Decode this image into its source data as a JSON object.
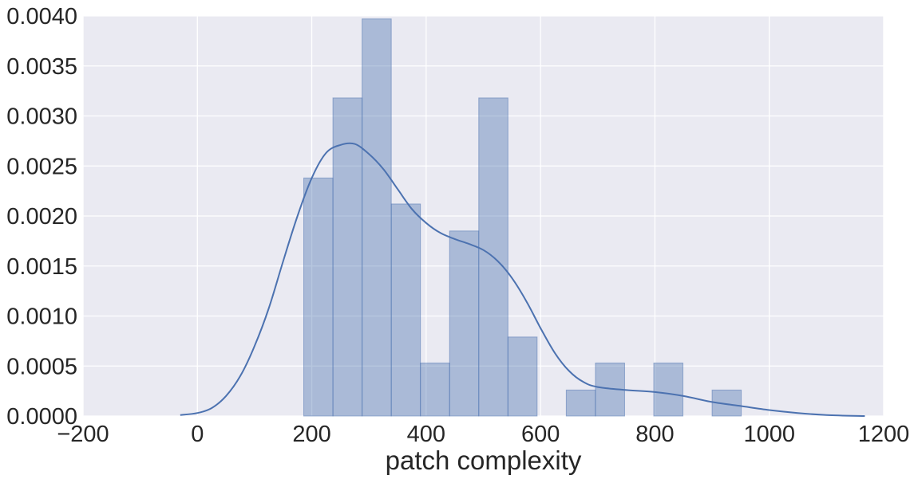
{
  "chart_data": {
    "type": "bar",
    "title": "",
    "xlabel": "patch complexity",
    "ylabel": "",
    "xlim": [
      -200,
      1200
    ],
    "ylim": [
      0,
      0.004
    ],
    "grid": true,
    "xticks": [
      -200,
      0,
      200,
      400,
      600,
      800,
      1000,
      1200
    ],
    "xtick_labels": [
      "−200",
      "0",
      "200",
      "400",
      "600",
      "800",
      "1000",
      "1200"
    ],
    "yticks": [
      0,
      0.0005,
      0.001,
      0.0015,
      0.002,
      0.0025,
      0.003,
      0.0035,
      0.004
    ],
    "ytick_labels": [
      "0.0000",
      "0.0005",
      "0.0010",
      "0.0015",
      "0.0020",
      "0.0025",
      "0.0030",
      "0.0035",
      "0.0040"
    ],
    "histogram": {
      "bin_width": 51,
      "bins": [
        {
          "start": 186,
          "density": 0.00238
        },
        {
          "start": 237,
          "density": 0.00318
        },
        {
          "start": 288,
          "density": 0.00397
        },
        {
          "start": 339,
          "density": 0.00212
        },
        {
          "start": 390,
          "density": 0.00053
        },
        {
          "start": 441,
          "density": 0.00185
        },
        {
          "start": 492,
          "density": 0.00318
        },
        {
          "start": 543,
          "density": 0.00079
        },
        {
          "start": 594,
          "density": 0
        },
        {
          "start": 645,
          "density": 0.00026
        },
        {
          "start": 696,
          "density": 0.00053
        },
        {
          "start": 747,
          "density": 0
        },
        {
          "start": 798,
          "density": 0.00053
        },
        {
          "start": 849,
          "density": 0
        },
        {
          "start": 900,
          "density": 0.00026
        }
      ]
    },
    "kde": {
      "x": [
        -30,
        0,
        25,
        50,
        75,
        100,
        125,
        150,
        175,
        200,
        225,
        250,
        275,
        300,
        325,
        350,
        375,
        400,
        425,
        450,
        475,
        500,
        525,
        550,
        575,
        600,
        625,
        650,
        675,
        700,
        750,
        800,
        850,
        900,
        950,
        1000,
        1050,
        1100,
        1167
      ],
      "y": [
        1e-05,
        3e-05,
        8e-05,
        0.0002,
        0.0004,
        0.0007,
        0.00108,
        0.00155,
        0.002,
        0.00238,
        0.00263,
        0.00271,
        0.00272,
        0.00262,
        0.00247,
        0.00227,
        0.00207,
        0.00193,
        0.00183,
        0.00177,
        0.00172,
        0.00166,
        0.00155,
        0.00138,
        0.00115,
        0.00088,
        0.00063,
        0.00045,
        0.00034,
        0.00029,
        0.00026,
        0.00024,
        0.0002,
        0.00014,
        0.0001,
        6e-05,
        3e-05,
        1e-05,
        0.0
      ]
    },
    "colors": {
      "plot_background": "#eaeaf2",
      "grid": "#ffffff",
      "bar_fill": "#4c72b0",
      "bar_opacity": 0.4,
      "line": "#4c72b0"
    }
  }
}
